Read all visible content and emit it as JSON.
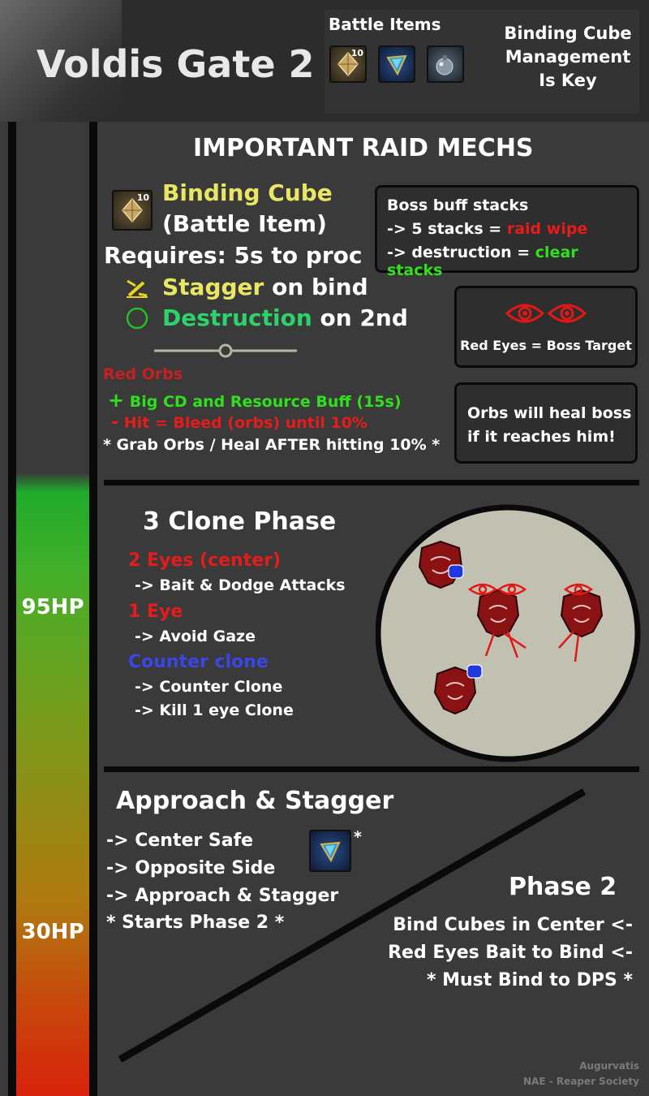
{
  "header": {
    "title": "Voldis Gate 2",
    "battle_items_label": "Battle Items",
    "cube_badge": "10",
    "note_line1": "Binding Cube",
    "note_line2": "Management",
    "note_line3": "Is Key"
  },
  "hp_markers": [
    "95HP",
    "30HP"
  ],
  "mechs": {
    "heading": "IMPORTANT RAID MECHS",
    "cube_badge": "10",
    "cube_name": "Binding Cube",
    "cube_type": "(Battle Item)",
    "requires": "Requires: 5s to proc",
    "stagger_word": "Stagger",
    "stagger_rest": "on bind",
    "destruction_word": "Destruction",
    "destruction_rest": "on 2nd",
    "boss_buff": {
      "title": "Boss buff stacks",
      "line1_prefix": "-> 5 stacks =",
      "line1_value": "raid wipe",
      "line2_prefix": "-> destruction =",
      "line2_value": "clear stacks"
    },
    "red_eyes_label": "Red Eyes = Boss Target",
    "orbs_box_line1": "Orbs will heal boss",
    "orbs_box_line2": "if it reaches him!",
    "red_orbs_title": "Red Orbs",
    "plus_sign": "+",
    "plus_text": "Big CD and Resource Buff (15s)",
    "minus_sign": "-",
    "minus_text": "Hit = Bleed (orbs) until 10%",
    "grab_note": "* Grab Orbs / Heal AFTER hitting 10% *"
  },
  "clone_phase": {
    "heading": "3 Clone Phase",
    "two_eyes": "2 Eyes (center)",
    "two_eyes_action": "-> Bait & Dodge Attacks",
    "one_eye": "1 Eye",
    "one_eye_action": "-> Avoid Gaze",
    "counter_clone": "Counter clone",
    "counter_action1": "-> Counter Clone",
    "counter_action2": "-> Kill 1 eye Clone"
  },
  "approach": {
    "heading": "Approach & Stagger",
    "line1": "-> Center Safe",
    "line2": "-> Opposite Side",
    "line3": "-> Approach & Stagger",
    "line4": "* Starts Phase 2 *",
    "item_asterisk": "*"
  },
  "phase2": {
    "heading": "Phase 2",
    "line1": "Bind Cubes in Center <-",
    "line2": "Red Eyes Bait to Bind <-",
    "line3": "* Must Bind to DPS *"
  },
  "credit": {
    "line1": "Augurvatis",
    "line2": "NAE - Reaper Society"
  },
  "colors": {
    "yellow": "#e9e664",
    "green": "#2cd26a",
    "red": "#e61c1c",
    "blue": "#3a46e6",
    "lime": "#30e01e"
  }
}
